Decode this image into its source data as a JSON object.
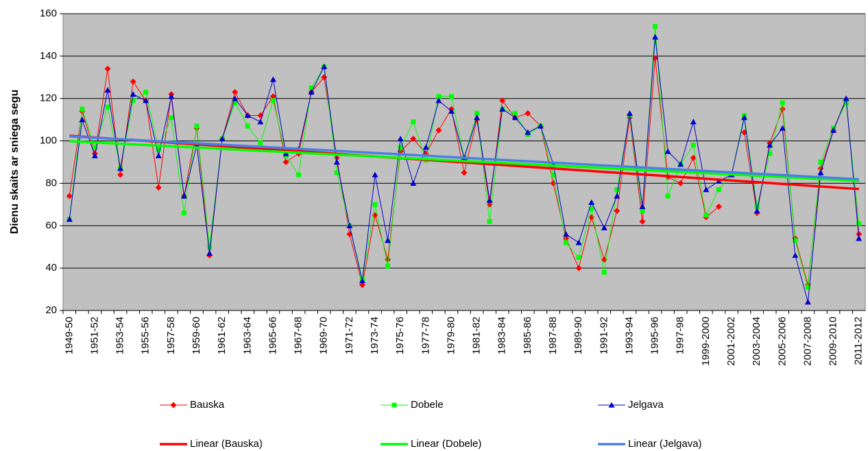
{
  "chart_data": {
    "type": "line",
    "y_axis_label": "Dienu skaits ar sniega segu",
    "categories": [
      "1949-50",
      null,
      "1951-52",
      null,
      "1953-54",
      null,
      "1955-56",
      null,
      "1957-58",
      null,
      "1959-60",
      null,
      "1961-62",
      null,
      "1963-64",
      null,
      "1965-66",
      null,
      "1967-68",
      null,
      "1969-70",
      null,
      "1971-72",
      null,
      "1973-74",
      null,
      "1975-76",
      null,
      "1977-78",
      null,
      "1979-80",
      null,
      "1981-82",
      null,
      "1983-84",
      null,
      "1985-86",
      null,
      "1987-88",
      null,
      "1989-90",
      null,
      "1991-92",
      null,
      "1993-94",
      null,
      "1995-96",
      null,
      "1997-98",
      null,
      "1999-2000",
      null,
      "2001-2002",
      null,
      "2003-2004",
      null,
      "2005-2006",
      null,
      "2007-2008",
      null,
      "2009-2010",
      null,
      "2011-2012"
    ],
    "series": [
      {
        "name": "Bauska",
        "color": "#ff0000",
        "marker": "diamond",
        "trend": {
          "name": "Linear (Bauska)",
          "color": "#ff0000"
        },
        "values": [
          74,
          114,
          94,
          134,
          84,
          128,
          119,
          78,
          122,
          74,
          106,
          46,
          101,
          123,
          112,
          112,
          121,
          90,
          94,
          123,
          130,
          92,
          56,
          32,
          65,
          44,
          95,
          101,
          94,
          105,
          115,
          85,
          110,
          70,
          119,
          111,
          113,
          107,
          80,
          54,
          40,
          64,
          44,
          67,
          111,
          62,
          139,
          83,
          80,
          92,
          64,
          69,
          null,
          104,
          66,
          99,
          115,
          54,
          32,
          87,
          105,
          119,
          56
        ]
      },
      {
        "name": "Dobele",
        "color": "#00ff00",
        "marker": "square",
        "trend": {
          "name": "Linear (Dobele)",
          "color": "#00ff00"
        },
        "values": [
          63,
          115,
          97,
          116,
          87,
          119,
          123,
          96,
          111,
          66,
          107,
          50,
          101,
          118,
          107,
          99,
          119,
          93,
          84,
          125,
          135,
          85,
          60,
          35,
          70,
          41,
          97,
          109,
          91,
          121,
          121,
          92,
          113,
          62,
          115,
          113,
          103,
          107,
          84,
          52,
          45,
          68,
          38,
          77,
          112,
          67,
          154,
          74,
          89,
          98,
          65,
          77,
          84,
          112,
          69,
          94,
          118,
          53,
          31,
          90,
          106,
          118,
          61
        ]
      },
      {
        "name": "Jelgava",
        "color": "#0000cc",
        "marker": "triangle",
        "trend": {
          "name": "Linear (Jelgava)",
          "color": "#4a7ee8"
        },
        "values": [
          63,
          110,
          93,
          124,
          87,
          122,
          119,
          93,
          121,
          74,
          98,
          47,
          101,
          120,
          112,
          109,
          129,
          94,
          96,
          123,
          135,
          90,
          60,
          34,
          84,
          53,
          101,
          80,
          97,
          119,
          114,
          92,
          111,
          72,
          115,
          111,
          104,
          107,
          89,
          56,
          52,
          71,
          59,
          74,
          113,
          69,
          149,
          95,
          89,
          109,
          77,
          81,
          84,
          111,
          67,
          98,
          106,
          46,
          24,
          85,
          105,
          120,
          54
        ]
      }
    ],
    "ylim": [
      20,
      160
    ],
    "yticks": [
      20,
      40,
      60,
      80,
      100,
      120,
      140,
      160
    ],
    "grid": true,
    "plot_background": "#c0c0c0"
  }
}
